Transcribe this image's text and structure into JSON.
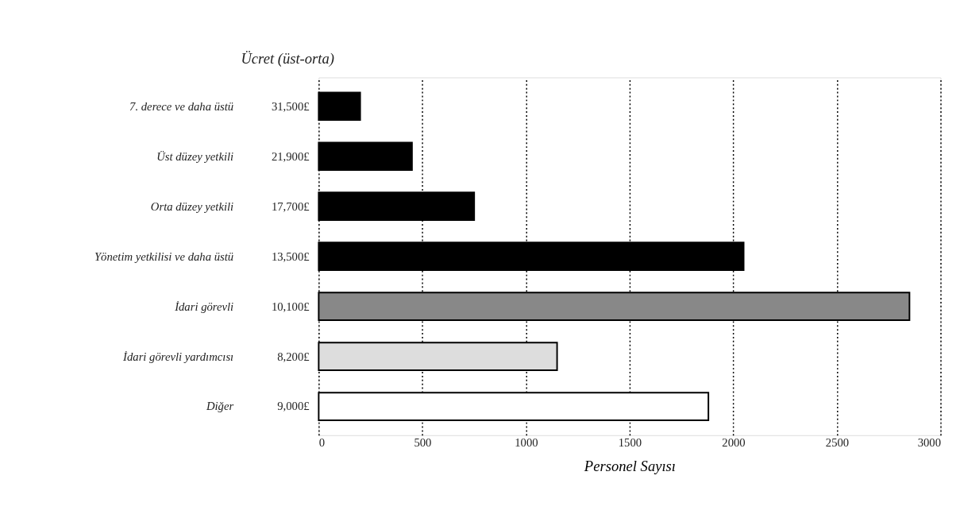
{
  "chart_data": {
    "type": "bar",
    "orientation": "horizontal",
    "title": "Ücret (üst-orta)",
    "xlabel": "Personel Sayısı",
    "categories": [
      "7. derece ve daha üstü",
      "Üst düzey yetkili",
      "Orta düzey yetkili",
      "Yönetim yetkilisi ve daha üstü",
      "İdari görevli",
      "İdari görevli yardımcısı",
      "Diğer"
    ],
    "values": [
      200,
      450,
      750,
      2050,
      2850,
      1150,
      1880
    ],
    "colors": [
      "#000000",
      "#000000",
      "#000000",
      "#000000",
      "#888888",
      "#dddddd",
      "#ffffff"
    ],
    "annotations": [
      "31,500£",
      "21,900£",
      "17,700£",
      "13,500£",
      "10,100£",
      "8,200£",
      "9,000£"
    ],
    "xlim": [
      0,
      3000
    ],
    "xticks": [
      0,
      500,
      1000,
      1500,
      2000,
      2500,
      3000
    ],
    "grid": "x"
  }
}
